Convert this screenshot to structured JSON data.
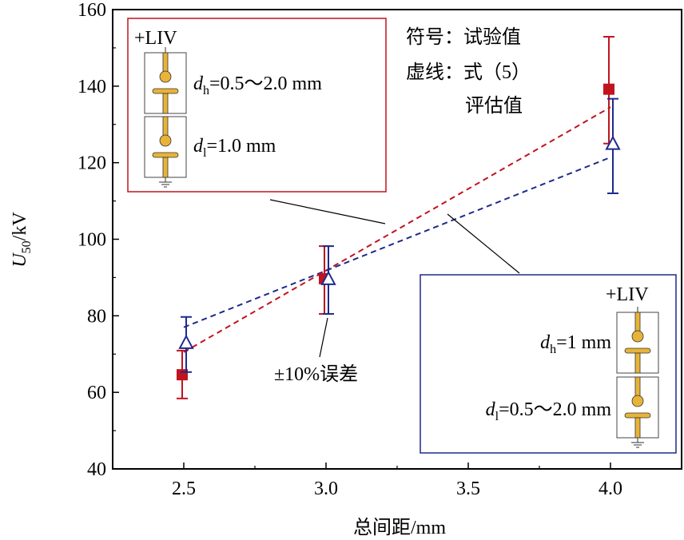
{
  "chart_data": {
    "type": "scatter",
    "xlabel": "总间距/mm",
    "ylabel_main": "U",
    "ylabel_sub": "50",
    "ylabel_unit": "/kV",
    "xlim": [
      2.25,
      4.25
    ],
    "ylim": [
      40,
      160
    ],
    "xticks": [
      2.5,
      3.0,
      3.5,
      4.0
    ],
    "xtick_labels": [
      "2.5",
      "3.0",
      "3.5",
      "4.0"
    ],
    "yticks": [
      40,
      60,
      80,
      100,
      120,
      140,
      160
    ],
    "ytick_labels": [
      "40",
      "60",
      "80",
      "100",
      "120",
      "140",
      "160"
    ],
    "series": [
      {
        "name": "dl=1.0 mm, dh=0.5~2.0 mm",
        "color": "#c0141e",
        "marker": "square",
        "x": [
          2.5,
          3.0,
          4.0
        ],
        "y": [
          64.6,
          89.7,
          139.2
        ],
        "err_low": [
          58.4,
          80.5,
          125.0
        ],
        "err_high": [
          70.9,
          98.2,
          152.9
        ],
        "fit_x": [
          2.5,
          4.0
        ],
        "fit_y": [
          70.5,
          134.5
        ]
      },
      {
        "name": "dh=1 mm, dl=0.5~2.0 mm",
        "color": "#1e2a8c",
        "marker": "triangle-open",
        "x": [
          2.5,
          3.0,
          4.0
        ],
        "y": [
          72.8,
          89.5,
          124.8
        ],
        "err_low": [
          65.3,
          80.5,
          112.0
        ],
        "err_high": [
          79.7,
          98.2,
          136.7
        ],
        "fit_x": [
          2.5,
          4.0
        ],
        "fit_y": [
          77.0,
          121.4
        ]
      }
    ],
    "legend": {
      "line1_label": "符号：",
      "line1_value": "试验值",
      "line2_label": "虚线：",
      "line2_value": "式（5）",
      "line3_value": "评估值"
    },
    "annotation_error": "±10%误差",
    "box_red": {
      "title": "+LIV",
      "dh_sym": "d",
      "dh_sub": "h",
      "dh_val": "=0.5～2.0 mm",
      "dl_sym": "d",
      "dl_sub": "l",
      "dl_val": "=1.0 mm"
    },
    "box_blue": {
      "title": "+LIV",
      "dh_sym": "d",
      "dh_sub": "h",
      "dh_val": "=1 mm",
      "dl_sym": "d",
      "dl_sub": "l",
      "dl_val": "=0.5～2.0 mm"
    }
  }
}
